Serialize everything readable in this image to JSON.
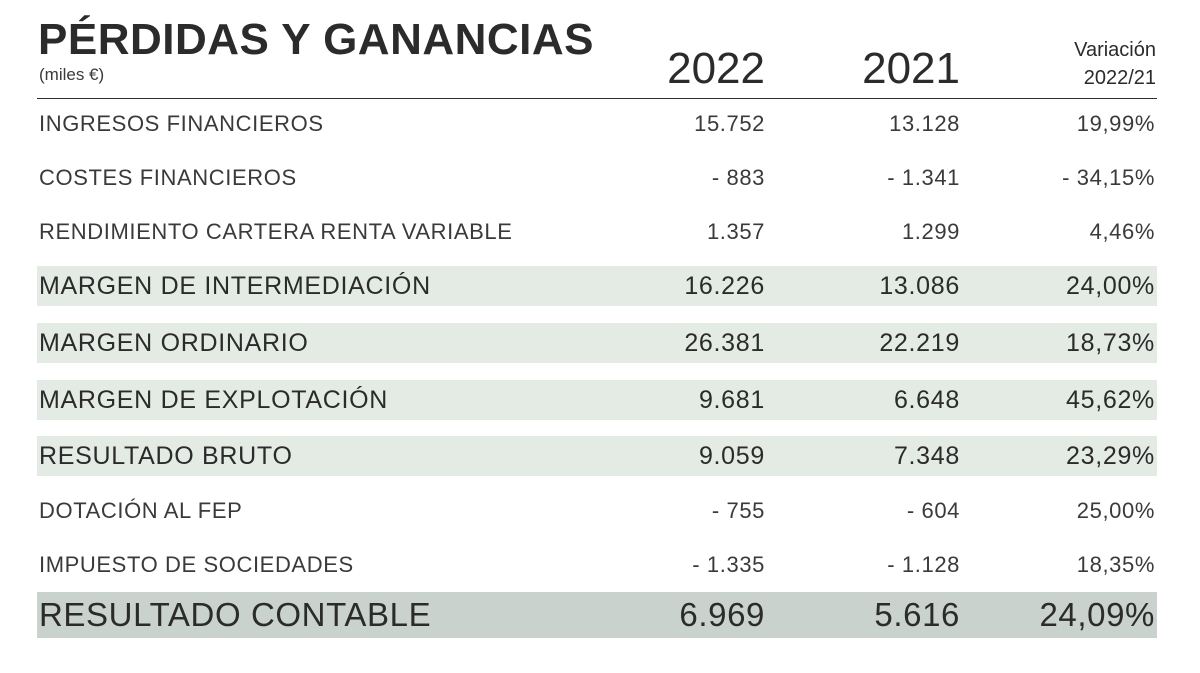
{
  "header": {
    "title": "PÉRDIDAS Y GANANCIAS",
    "subtitle": "(miles €)",
    "col_2022": "2022",
    "col_2021": "2021",
    "col_var_line1": "Variación",
    "col_var_line2": "2022/21"
  },
  "rows": [
    {
      "label": "INGRESOS FINANCIEROS",
      "v2022": "15.752",
      "v2021": "13.128",
      "var": "19,99%",
      "style": "normal"
    },
    {
      "label": "COSTES FINANCIEROS",
      "v2022": "- 883",
      "v2021": "- 1.341",
      "var": "- 34,15%",
      "style": "normal"
    },
    {
      "label": "RENDIMIENTO CARTERA RENTA VARIABLE",
      "v2022": "1.357",
      "v2021": "1.299",
      "var": "4,46%",
      "style": "normal"
    },
    {
      "label": "MARGEN DE INTERMEDIACIÓN",
      "v2022": "16.226",
      "v2021": "13.086",
      "var": "24,00%",
      "style": "highlight"
    },
    {
      "label": "MARGEN ORDINARIO",
      "v2022": "26.381",
      "v2021": "22.219",
      "var": "18,73%",
      "style": "highlight"
    },
    {
      "label": "MARGEN DE EXPLOTACIÓN",
      "v2022": "9.681",
      "v2021": "6.648",
      "var": "45,62%",
      "style": "highlight"
    },
    {
      "label": "RESULTADO BRUTO",
      "v2022": "9.059",
      "v2021": "7.348",
      "var": "23,29%",
      "style": "highlight"
    },
    {
      "label": "DOTACIÓN AL FEP",
      "v2022": "- 755",
      "v2021": "- 604",
      "var": "25,00%",
      "style": "normal"
    },
    {
      "label": "IMPUESTO DE SOCIEDADES",
      "v2022": "- 1.335",
      "v2021": "- 1.128",
      "var": "18,35%",
      "style": "normal"
    },
    {
      "label": "RESULTADO CONTABLE",
      "v2022": "6.969",
      "v2021": "5.616",
      "var": "24,09%",
      "style": "total"
    }
  ],
  "colors": {
    "highlight_row_bg": "#e4ebe5",
    "total_row_bg": "#c9d2cc",
    "text": "#2b2b2b"
  }
}
